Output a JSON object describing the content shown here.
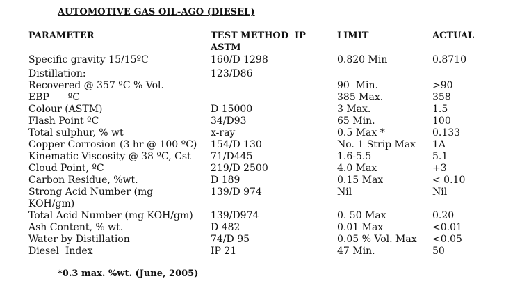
{
  "title": "AUTOMOTIVE GAS OIL-AGO (DIESEL)",
  "headers": {
    "parameter": "PARAMETER",
    "test_method_line1": "TEST METHOD  IP",
    "test_method_line2": "ASTM",
    "limit": "LIMIT",
    "actual": "ACTUAL"
  },
  "rows": [
    {
      "parameter": "Specific gravity 15/15ºC",
      "method": "160/D 1298",
      "limit": "0.820 Min",
      "actual": "0.8710"
    },
    {
      "parameter": "Distillation:",
      "method": "123/D86",
      "limit": "",
      "actual": ""
    },
    {
      "parameter": "Recovered @ 357 ºC % Vol.",
      "method": "",
      "limit": "90  Min.",
      "actual": ">90"
    },
    {
      "parameter": "EBP      ºC",
      "method": "",
      "limit": "385 Max.",
      "actual": "358"
    },
    {
      "parameter": "Colour (ASTM)",
      "method": "D 15000",
      "limit": "3 Max.",
      "actual": "1.5"
    },
    {
      "parameter": "Flash Point ºC",
      "method": "34/D93",
      "limit": "65 Min.",
      "actual": "100"
    },
    {
      "parameter": "Total sulphur, % wt",
      "method": "x-ray",
      "limit": "0.5 Max *",
      "actual": "0.133"
    },
    {
      "parameter": "Copper Corrosion (3 hr @ 100 ºC)",
      "method": "154/D 130",
      "limit": "No. 1 Strip Max",
      "actual": "1A"
    },
    {
      "parameter": "Kinematic Viscosity @ 38 ºC, Cst",
      "method": "71/D445",
      "limit": "1.6-5.5",
      "actual": "5.1"
    },
    {
      "parameter": "Cloud Point, ºC",
      "method": "219/D 2500",
      "limit": "4.0 Max",
      "actual": "+3"
    },
    {
      "parameter": "Carbon Residue, %wt.",
      "method": "D 189",
      "limit": "0.15 Max",
      "actual": "< 0.10"
    },
    {
      "parameter": "Strong Acid Number (mg",
      "method": "139/D 974",
      "limit": "Nil",
      "actual": "Nil"
    },
    {
      "parameter": "KOH/gm)",
      "method": "",
      "limit": "",
      "actual": ""
    },
    {
      "parameter": "Total Acid Number (mg KOH/gm)",
      "method": "139/D974",
      "limit": "0. 50 Max",
      "actual": "0.20"
    },
    {
      "parameter": "Ash Content, % wt.",
      "method": "D 482",
      "limit": "0.01 Max",
      "actual": "<0.01"
    },
    {
      "parameter": "Water by Distillation",
      "method": "74/D 95",
      "limit": "0.05 % Vol. Max",
      "actual": "<0.05"
    },
    {
      "parameter": "Diesel  Index",
      "method": "IP 21",
      "limit": "47 Min.",
      "actual": "50"
    }
  ],
  "footnote": "*0.3 max. %wt. (June, 2005)"
}
